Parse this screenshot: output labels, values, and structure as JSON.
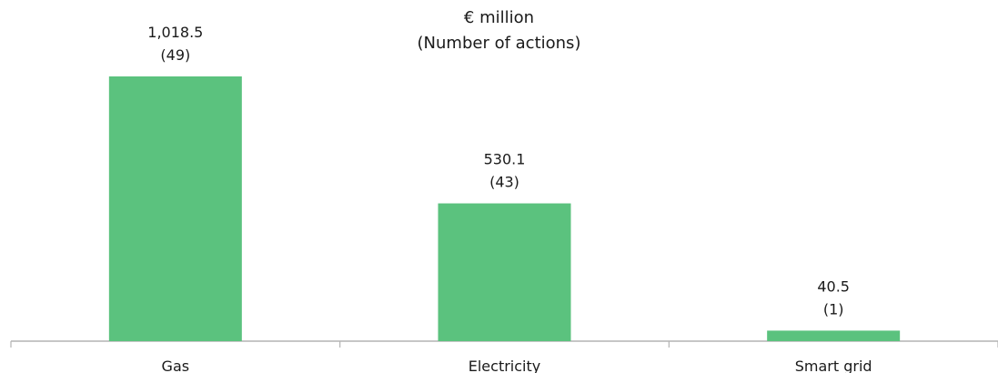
{
  "chart_data": {
    "type": "bar",
    "title": "€ million",
    "subtitle": "(Number of actions)",
    "categories": [
      "Gas",
      "Electricity",
      "Smart grid"
    ],
    "values": [
      1018.5,
      530.1,
      40.5
    ],
    "value_labels": [
      "1,018.5",
      "530.1",
      "40.5"
    ],
    "action_counts": [
      "(49)",
      "(43)",
      "(1)"
    ],
    "xlabel": "",
    "ylabel": "",
    "ylim": [
      0,
      1100
    ],
    "grid": false,
    "legend": "none",
    "bar_color": "#5bc27e",
    "axis_color": "#b3b3b3"
  }
}
